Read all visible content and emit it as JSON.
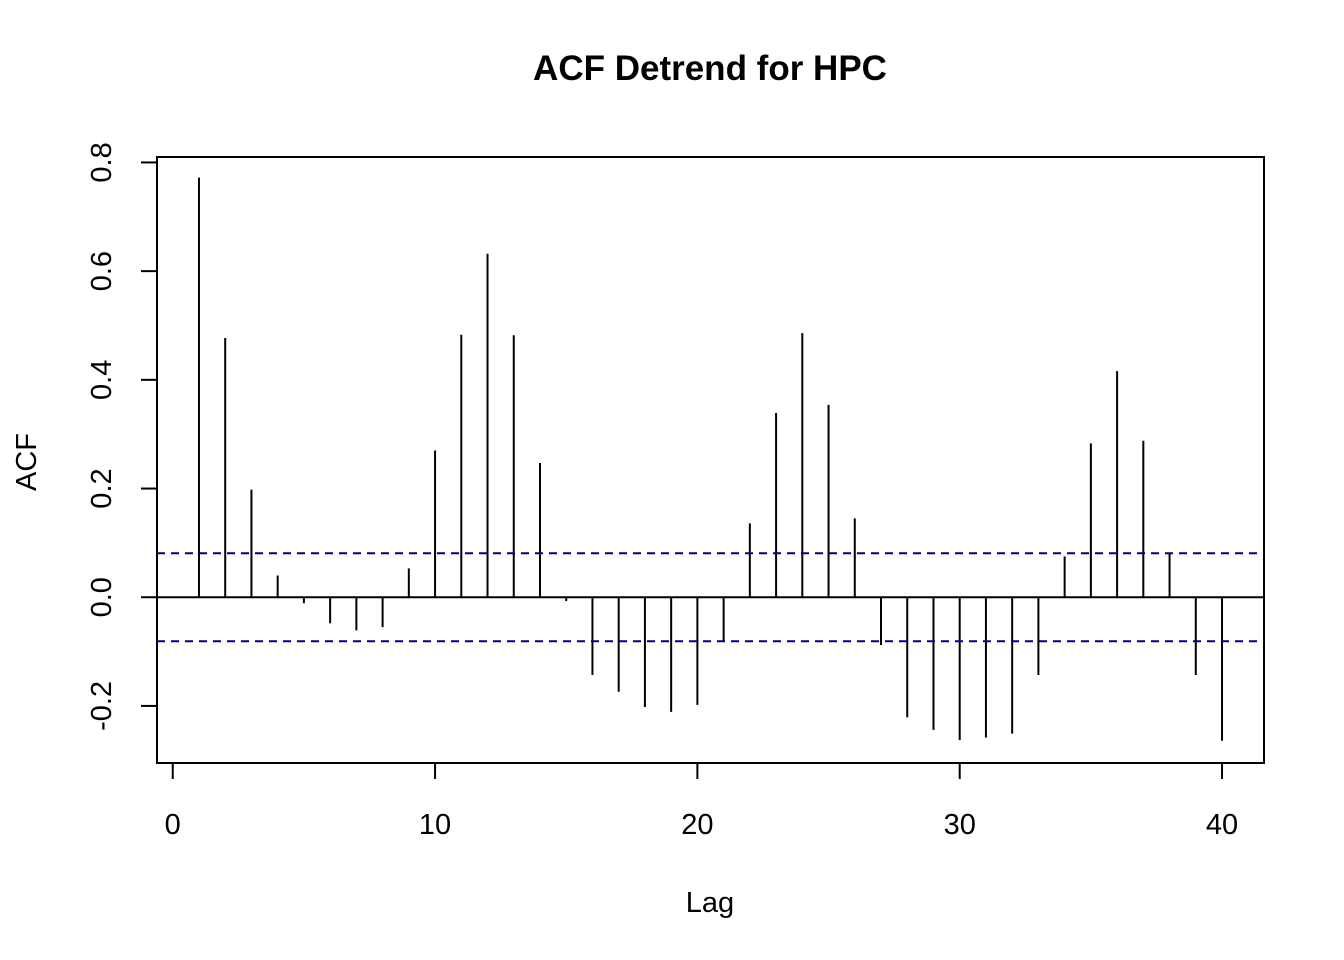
{
  "chart_data": {
    "type": "bar",
    "title": "ACF Detrend for HPC",
    "xlabel": "Lag",
    "ylabel": "ACF",
    "xlim": [
      -0.6,
      41.6
    ],
    "ylim": [
      -0.305,
      0.81
    ],
    "xticks": [
      0,
      10,
      20,
      30,
      40
    ],
    "xtick_labels": [
      "0",
      "10",
      "20",
      "30",
      "40"
    ],
    "yticks": [
      -0.2,
      0.0,
      0.2,
      0.4,
      0.6,
      0.8
    ],
    "ytick_labels": [
      "-0.2",
      "0.0",
      "0.2",
      "0.4",
      "0.6",
      "0.8"
    ],
    "confidence_bound": 0.081,
    "confidence_color": "#00008b",
    "lags": [
      1,
      2,
      3,
      4,
      5,
      6,
      7,
      8,
      9,
      10,
      11,
      12,
      13,
      14,
      15,
      16,
      17,
      18,
      19,
      20,
      21,
      22,
      23,
      24,
      25,
      26,
      27,
      28,
      29,
      30,
      31,
      32,
      33,
      34,
      35,
      36,
      37,
      38,
      39,
      40
    ],
    "values": [
      0.772,
      0.477,
      0.198,
      0.04,
      -0.011,
      -0.048,
      -0.061,
      -0.055,
      0.053,
      0.27,
      0.483,
      0.632,
      0.482,
      0.247,
      -0.007,
      -0.143,
      -0.174,
      -0.202,
      -0.211,
      -0.198,
      -0.08,
      0.136,
      0.339,
      0.486,
      0.354,
      0.145,
      -0.088,
      -0.221,
      -0.244,
      -0.263,
      -0.258,
      -0.251,
      -0.143,
      0.075,
      0.283,
      0.416,
      0.288,
      0.08,
      -0.143,
      -0.264
    ],
    "grid": false,
    "legend": false
  }
}
